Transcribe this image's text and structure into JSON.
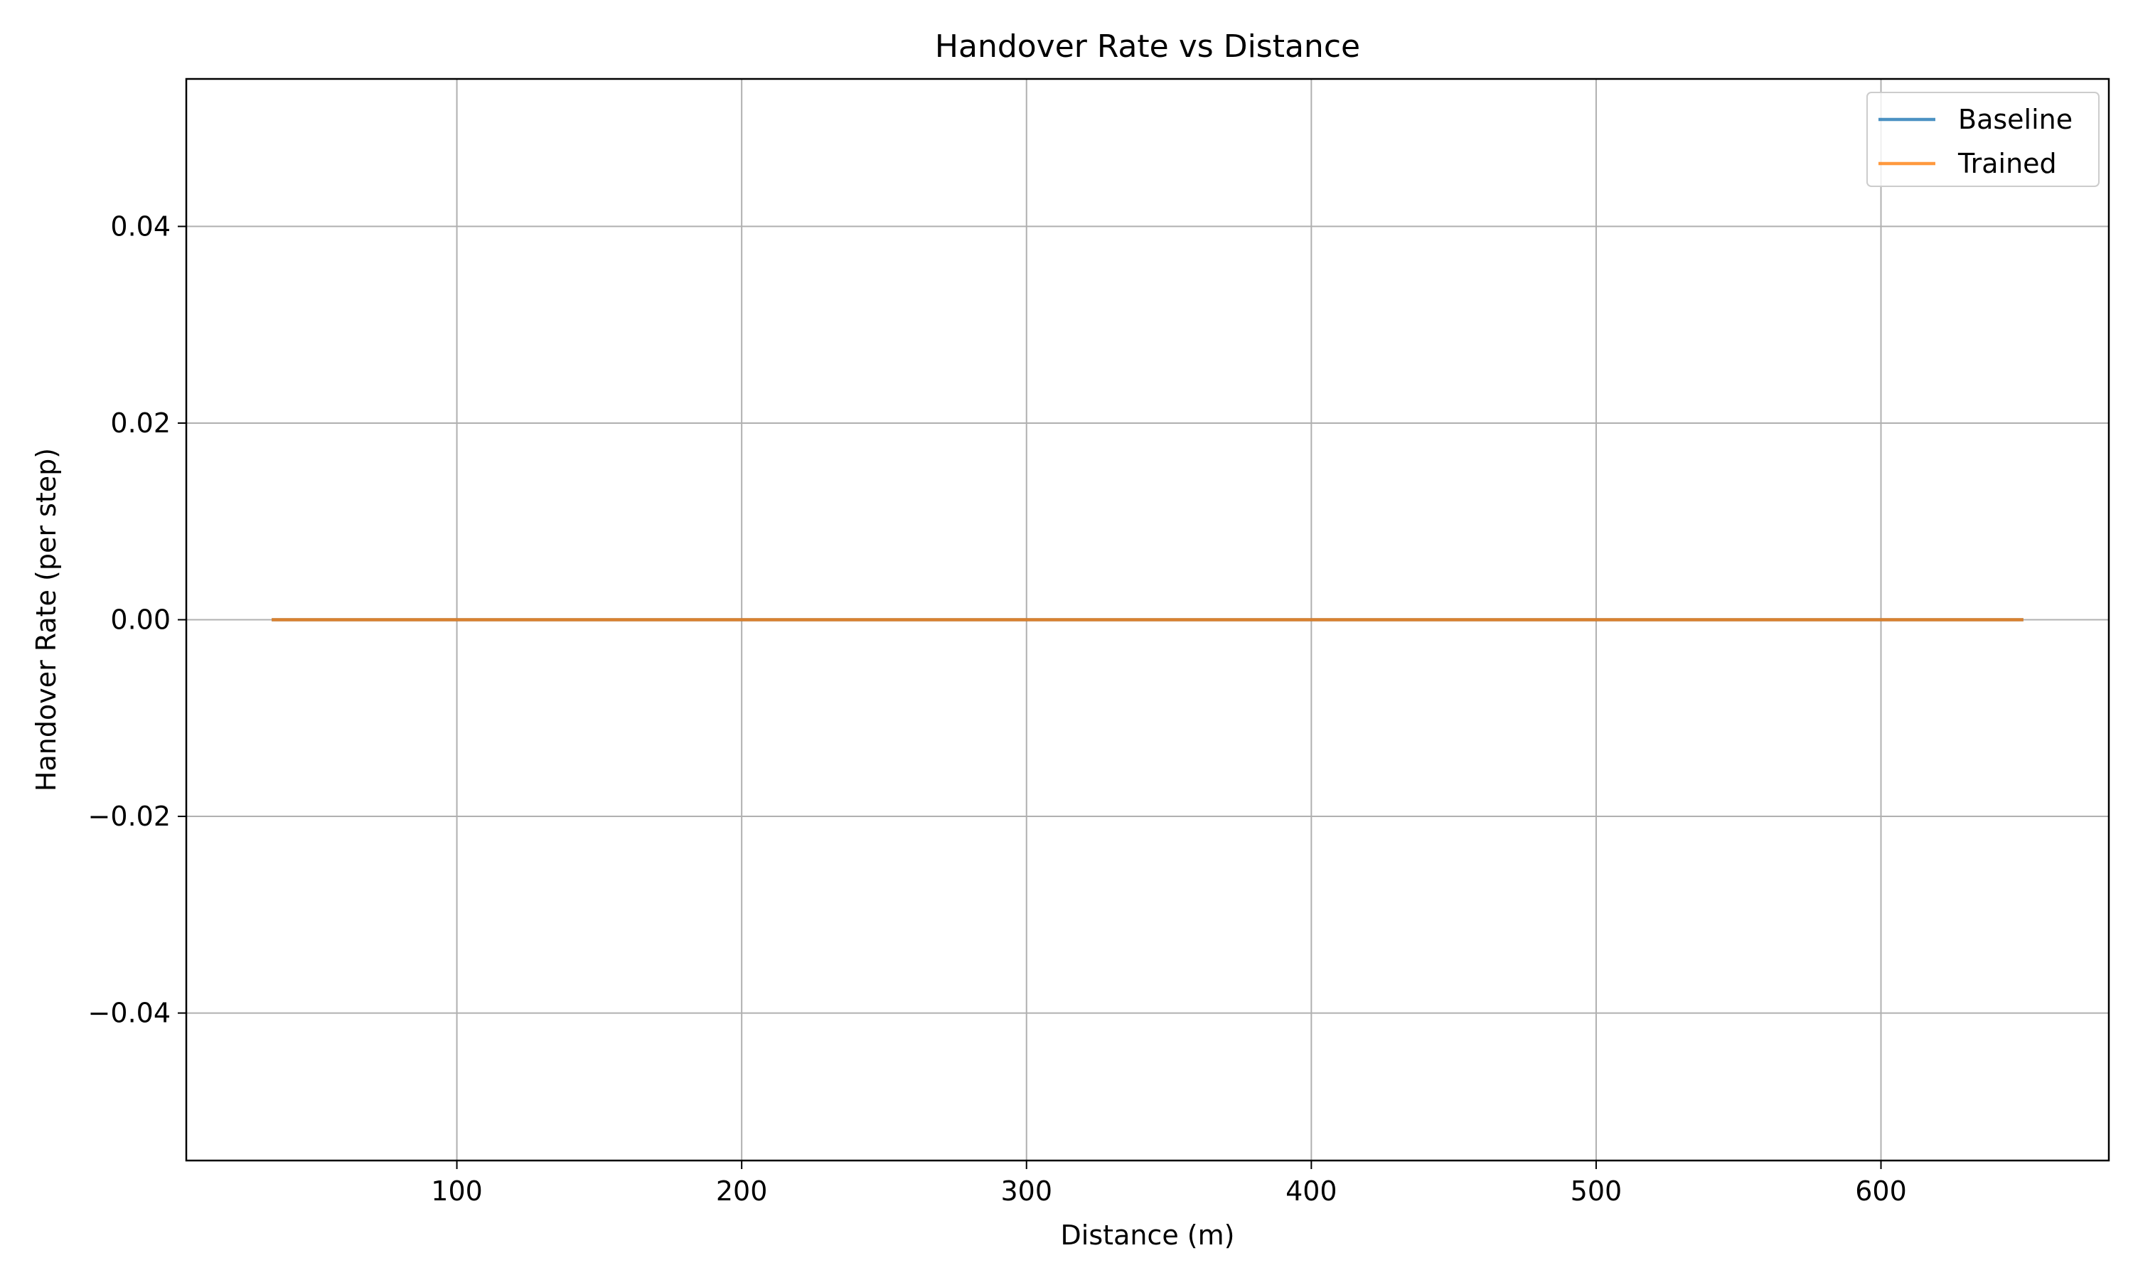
{
  "chart_data": {
    "type": "line",
    "title": "Handover Rate vs Distance",
    "xlabel": "Distance (m)",
    "ylabel": "Handover Rate (per step)",
    "xlim": [
      5,
      680
    ],
    "ylim": [
      -0.055,
      0.055
    ],
    "xticks": [
      100,
      200,
      300,
      400,
      500,
      600
    ],
    "xtick_labels": [
      "100",
      "200",
      "300",
      "400",
      "500",
      "600"
    ],
    "yticks": [
      -0.04,
      -0.02,
      0.0,
      0.02,
      0.04
    ],
    "ytick_labels": [
      "−0.04",
      "−0.02",
      "0.00",
      "0.02",
      "0.04"
    ],
    "grid": true,
    "legend": "top-right",
    "series": [
      {
        "name": "Baseline",
        "color": "#1f77b4",
        "x": [
          35,
          650
        ],
        "y": [
          0.0,
          0.0
        ]
      },
      {
        "name": "Trained",
        "color": "#ff7f0e",
        "x": [
          35,
          650
        ],
        "y": [
          0.0,
          0.0
        ]
      }
    ]
  }
}
